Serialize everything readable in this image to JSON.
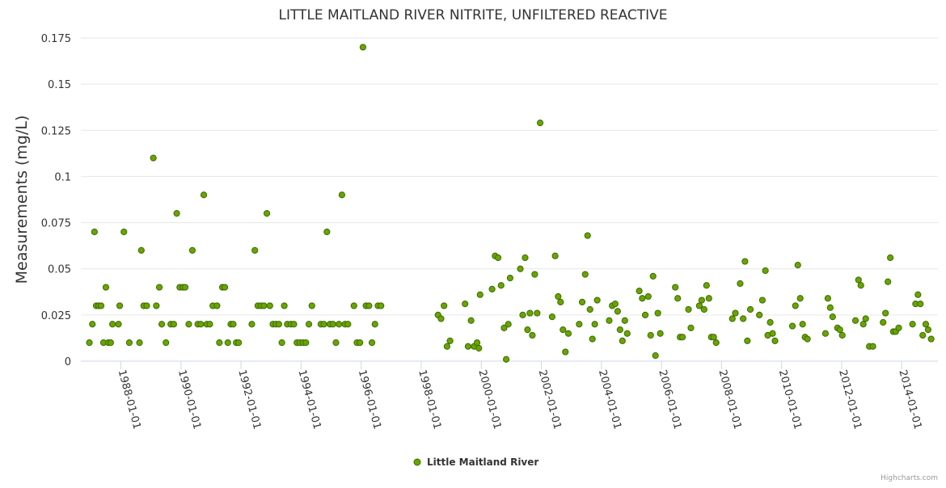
{
  "chart_data": {
    "type": "scatter",
    "title": "LITTLE MAITLAND RIVER NITRITE, UNFILTERED REACTIVE",
    "ylabel": "Measurements (mg/L)",
    "xlabel": "",
    "ylim": [
      0,
      0.175
    ],
    "xlim": [
      "1986-09-01",
      "2015-03-15"
    ],
    "yticks": [
      {
        "value": 0,
        "label": "0"
      },
      {
        "value": 0.025,
        "label": "0.025"
      },
      {
        "value": 0.05,
        "label": "0.05"
      },
      {
        "value": 0.075,
        "label": "0.075"
      },
      {
        "value": 0.1,
        "label": "0.1"
      },
      {
        "value": 0.125,
        "label": "0.125"
      },
      {
        "value": 0.15,
        "label": "0.15"
      },
      {
        "value": 0.175,
        "label": "0.175"
      }
    ],
    "xticks": [
      "1988-01-01",
      "1990-01-01",
      "1992-01-01",
      "1994-01-01",
      "1996-01-01",
      "1998-01-01",
      "2000-01-01",
      "2002-01-01",
      "2004-01-01",
      "2006-01-01",
      "2008-01-01",
      "2010-01-01",
      "2012-01-01",
      "2014-01-01"
    ],
    "grid": true,
    "legend_position": "bottom-center",
    "series": [
      {
        "name": "Little Maitland River",
        "color": "#6aa400",
        "edge_color": "#3d6b00",
        "points": [
          [
            1986.95,
            0.01
          ],
          [
            1987.05,
            0.02
          ],
          [
            1987.12,
            0.07
          ],
          [
            1987.18,
            0.03
          ],
          [
            1987.26,
            0.03
          ],
          [
            1987.34,
            0.03
          ],
          [
            1987.42,
            0.01
          ],
          [
            1987.5,
            0.04
          ],
          [
            1987.58,
            0.01
          ],
          [
            1987.66,
            0.01
          ],
          [
            1987.72,
            0.02
          ],
          [
            1987.92,
            0.02
          ],
          [
            1987.96,
            0.03
          ],
          [
            1988.1,
            0.07
          ],
          [
            1988.28,
            0.01
          ],
          [
            1988.62,
            0.01
          ],
          [
            1988.68,
            0.06
          ],
          [
            1988.76,
            0.03
          ],
          [
            1988.86,
            0.03
          ],
          [
            1989.08,
            0.11
          ],
          [
            1989.18,
            0.03
          ],
          [
            1989.28,
            0.04
          ],
          [
            1989.36,
            0.02
          ],
          [
            1989.5,
            0.01
          ],
          [
            1989.66,
            0.02
          ],
          [
            1989.76,
            0.02
          ],
          [
            1989.86,
            0.08
          ],
          [
            1989.96,
            0.04
          ],
          [
            1990.06,
            0.04
          ],
          [
            1990.14,
            0.04
          ],
          [
            1990.26,
            0.02
          ],
          [
            1990.38,
            0.06
          ],
          [
            1990.56,
            0.02
          ],
          [
            1990.66,
            0.02
          ],
          [
            1990.76,
            0.09
          ],
          [
            1990.86,
            0.02
          ],
          [
            1990.96,
            0.02
          ],
          [
            1991.06,
            0.03
          ],
          [
            1991.2,
            0.03
          ],
          [
            1991.28,
            0.01
          ],
          [
            1991.38,
            0.04
          ],
          [
            1991.46,
            0.04
          ],
          [
            1991.56,
            0.01
          ],
          [
            1991.66,
            0.02
          ],
          [
            1991.74,
            0.02
          ],
          [
            1991.84,
            0.01
          ],
          [
            1991.92,
            0.01
          ],
          [
            1992.36,
            0.02
          ],
          [
            1992.46,
            0.06
          ],
          [
            1992.56,
            0.03
          ],
          [
            1992.66,
            0.03
          ],
          [
            1992.76,
            0.03
          ],
          [
            1992.86,
            0.08
          ],
          [
            1992.96,
            0.03
          ],
          [
            1993.06,
            0.02
          ],
          [
            1993.16,
            0.02
          ],
          [
            1993.26,
            0.02
          ],
          [
            1993.36,
            0.01
          ],
          [
            1993.44,
            0.03
          ],
          [
            1993.54,
            0.02
          ],
          [
            1993.66,
            0.02
          ],
          [
            1993.76,
            0.02
          ],
          [
            1993.86,
            0.01
          ],
          [
            1993.96,
            0.01
          ],
          [
            1994.06,
            0.01
          ],
          [
            1994.16,
            0.01
          ],
          [
            1994.26,
            0.02
          ],
          [
            1994.36,
            0.03
          ],
          [
            1994.66,
            0.02
          ],
          [
            1994.76,
            0.02
          ],
          [
            1994.86,
            0.07
          ],
          [
            1994.96,
            0.02
          ],
          [
            1995.06,
            0.02
          ],
          [
            1995.16,
            0.01
          ],
          [
            1995.26,
            0.02
          ],
          [
            1995.36,
            0.09
          ],
          [
            1995.46,
            0.02
          ],
          [
            1995.56,
            0.02
          ],
          [
            1995.76,
            0.03
          ],
          [
            1995.86,
            0.01
          ],
          [
            1995.96,
            0.01
          ],
          [
            1996.06,
            0.17
          ],
          [
            1996.16,
            0.03
          ],
          [
            1996.26,
            0.03
          ],
          [
            1996.36,
            0.01
          ],
          [
            1996.46,
            0.02
          ],
          [
            1996.56,
            0.03
          ],
          [
            1996.66,
            0.03
          ],
          [
            1998.56,
            0.025
          ],
          [
            1998.66,
            0.023
          ],
          [
            1998.76,
            0.03
          ],
          [
            1998.86,
            0.008
          ],
          [
            1998.96,
            0.011
          ],
          [
            1999.46,
            0.031
          ],
          [
            1999.56,
            0.008
          ],
          [
            1999.66,
            0.022
          ],
          [
            1999.76,
            0.008
          ],
          [
            1999.86,
            0.01
          ],
          [
            1999.92,
            0.007
          ],
          [
            1999.96,
            0.036
          ],
          [
            2000.36,
            0.039
          ],
          [
            2000.46,
            0.057
          ],
          [
            2000.56,
            0.056
          ],
          [
            2000.66,
            0.041
          ],
          [
            2000.76,
            0.018
          ],
          [
            2000.83,
            0.001
          ],
          [
            2000.9,
            0.02
          ],
          [
            2000.96,
            0.045
          ],
          [
            2001.3,
            0.05
          ],
          [
            2001.38,
            0.025
          ],
          [
            2001.46,
            0.056
          ],
          [
            2001.54,
            0.017
          ],
          [
            2001.62,
            0.026
          ],
          [
            2001.7,
            0.014
          ],
          [
            2001.78,
            0.047
          ],
          [
            2001.86,
            0.026
          ],
          [
            2001.96,
            0.129
          ],
          [
            2002.36,
            0.024
          ],
          [
            2002.46,
            0.057
          ],
          [
            2002.56,
            0.035
          ],
          [
            2002.64,
            0.032
          ],
          [
            2002.72,
            0.017
          ],
          [
            2002.8,
            0.005
          ],
          [
            2002.9,
            0.015
          ],
          [
            2003.26,
            0.02
          ],
          [
            2003.36,
            0.032
          ],
          [
            2003.46,
            0.047
          ],
          [
            2003.54,
            0.068
          ],
          [
            2003.62,
            0.028
          ],
          [
            2003.7,
            0.012
          ],
          [
            2003.78,
            0.02
          ],
          [
            2003.86,
            0.033
          ],
          [
            2004.26,
            0.022
          ],
          [
            2004.36,
            0.03
          ],
          [
            2004.46,
            0.031
          ],
          [
            2004.54,
            0.027
          ],
          [
            2004.62,
            0.017
          ],
          [
            2004.7,
            0.011
          ],
          [
            2004.78,
            0.022
          ],
          [
            2004.86,
            0.015
          ],
          [
            2005.26,
            0.038
          ],
          [
            2005.36,
            0.034
          ],
          [
            2005.46,
            0.025
          ],
          [
            2005.56,
            0.035
          ],
          [
            2005.64,
            0.014
          ],
          [
            2005.72,
            0.046
          ],
          [
            2005.8,
            0.003
          ],
          [
            2005.88,
            0.026
          ],
          [
            2005.96,
            0.015
          ],
          [
            2006.46,
            0.04
          ],
          [
            2006.54,
            0.034
          ],
          [
            2006.62,
            0.013
          ],
          [
            2006.7,
            0.013
          ],
          [
            2006.9,
            0.028
          ],
          [
            2006.98,
            0.018
          ],
          [
            2007.26,
            0.03
          ],
          [
            2007.34,
            0.033
          ],
          [
            2007.42,
            0.028
          ],
          [
            2007.5,
            0.041
          ],
          [
            2007.58,
            0.034
          ],
          [
            2007.66,
            0.013
          ],
          [
            2007.74,
            0.013
          ],
          [
            2007.82,
            0.01
          ],
          [
            2008.36,
            0.023
          ],
          [
            2008.46,
            0.026
          ],
          [
            2008.62,
            0.042
          ],
          [
            2008.72,
            0.023
          ],
          [
            2008.78,
            0.054
          ],
          [
            2008.86,
            0.011
          ],
          [
            2008.96,
            0.028
          ],
          [
            2009.26,
            0.025
          ],
          [
            2009.36,
            0.033
          ],
          [
            2009.46,
            0.049
          ],
          [
            2009.54,
            0.014
          ],
          [
            2009.62,
            0.021
          ],
          [
            2009.7,
            0.015
          ],
          [
            2009.78,
            0.011
          ],
          [
            2010.36,
            0.019
          ],
          [
            2010.46,
            0.03
          ],
          [
            2010.54,
            0.052
          ],
          [
            2010.62,
            0.034
          ],
          [
            2010.7,
            0.02
          ],
          [
            2010.78,
            0.013
          ],
          [
            2010.86,
            0.012
          ],
          [
            2011.46,
            0.015
          ],
          [
            2011.54,
            0.034
          ],
          [
            2011.62,
            0.029
          ],
          [
            2011.7,
            0.024
          ],
          [
            2011.86,
            0.018
          ],
          [
            2011.94,
            0.017
          ],
          [
            2012.02,
            0.014
          ],
          [
            2012.46,
            0.022
          ],
          [
            2012.56,
            0.044
          ],
          [
            2012.64,
            0.041
          ],
          [
            2012.72,
            0.02
          ],
          [
            2012.8,
            0.023
          ],
          [
            2012.92,
            0.008
          ],
          [
            2013.04,
            0.008
          ],
          [
            2013.38,
            0.021
          ],
          [
            2013.46,
            0.026
          ],
          [
            2013.54,
            0.043
          ],
          [
            2013.62,
            0.056
          ],
          [
            2013.72,
            0.016
          ],
          [
            2013.8,
            0.016
          ],
          [
            2013.9,
            0.018
          ],
          [
            2014.36,
            0.02
          ],
          [
            2014.46,
            0.031
          ],
          [
            2014.54,
            0.036
          ],
          [
            2014.62,
            0.031
          ],
          [
            2014.7,
            0.014
          ],
          [
            2014.8,
            0.02
          ],
          [
            2014.88,
            0.017
          ],
          [
            2014.98,
            0.012
          ]
        ]
      }
    ]
  },
  "credits": "Highcharts.com"
}
